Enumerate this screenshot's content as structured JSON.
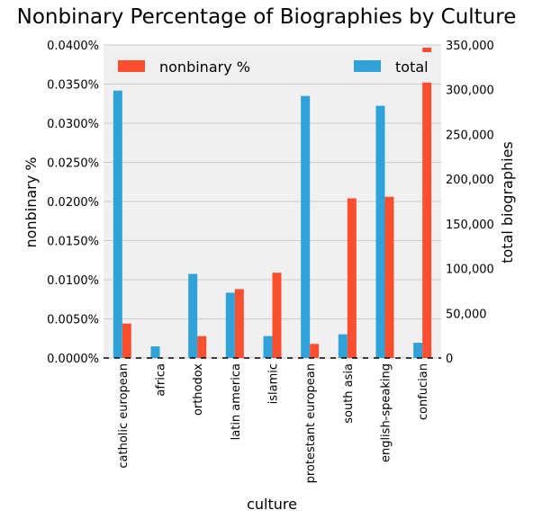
{
  "chart_data": {
    "type": "bar",
    "title": "Nonbinary Percentage of Biographies by Culture",
    "xlabel": "culture",
    "ylabel_left": "nonbinary %",
    "ylabel_right": "total biographies",
    "categories": [
      "catholic european",
      "africa",
      "orthodox",
      "latin america",
      "islamic",
      "protestant european",
      "south asia",
      "english-speaking",
      "confucian"
    ],
    "series": [
      {
        "name": "total",
        "axis": "right",
        "color": "#30a2da",
        "values": [
          299000,
          13000,
          94000,
          73000,
          24500,
          293000,
          26500,
          282000,
          17000
        ]
      },
      {
        "name": "nonbinary %",
        "axis": "left",
        "color": "#fc4f30",
        "values": [
          0.0044,
          0.0,
          0.0028,
          0.0088,
          0.0109,
          0.0018,
          0.0204,
          0.0206,
          0.0352
        ]
      }
    ],
    "ylim_left": [
      0,
      0.04
    ],
    "ylim_right": [
      0,
      350000
    ],
    "left_ticks": [
      "0.0000%",
      "0.0050%",
      "0.0100%",
      "0.0150%",
      "0.0200%",
      "0.0250%",
      "0.0300%",
      "0.0350%",
      "0.0400%"
    ],
    "right_ticks": [
      "0",
      "50,000",
      "100,000",
      "150,000",
      "200,000",
      "250,000",
      "300,000",
      "350,000"
    ],
    "legend_placement": "top",
    "grid": true
  }
}
